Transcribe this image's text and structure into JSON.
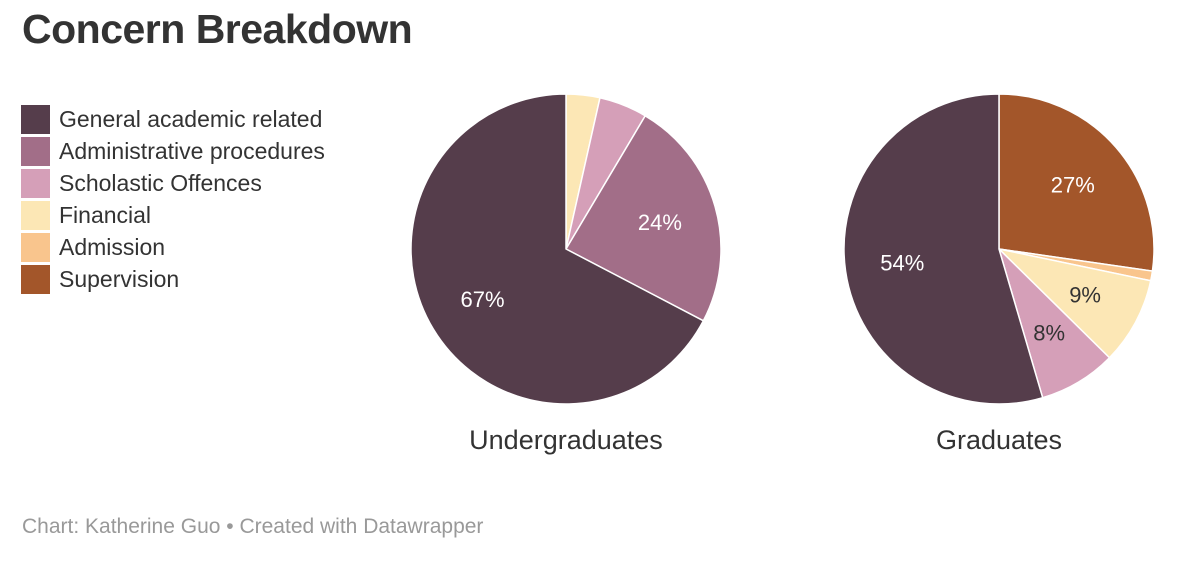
{
  "title": "Concern Breakdown",
  "legend": [
    {
      "label": "General academic related",
      "color": "#553d4b"
    },
    {
      "label": "Administrative procedures",
      "color": "#a26e88"
    },
    {
      "label": "Scholastic Offences",
      "color": "#d59fb8"
    },
    {
      "label": "Financial",
      "color": "#fce7b5"
    },
    {
      "label": "Admission",
      "color": "#f9c58d"
    },
    {
      "label": "Supervision",
      "color": "#a3562a"
    }
  ],
  "chart_data": [
    {
      "type": "pie",
      "title": "Undergraduates",
      "categories": [
        "General academic related",
        "Administrative procedures",
        "Scholastic Offences",
        "Financial",
        "Admission",
        "Supervision"
      ],
      "values": [
        67,
        24,
        5,
        3.5,
        0,
        0
      ],
      "labels": [
        "67%",
        "24%",
        "",
        "",
        "",
        ""
      ],
      "colors": [
        "#553d4b",
        "#a26e88",
        "#d59fb8",
        "#fce7b5",
        "#f9c58d",
        "#a3562a"
      ],
      "label_colors": [
        "#ffffff",
        "#ffffff",
        "#333333",
        "#333333",
        "#333333",
        "#ffffff"
      ],
      "legend": "left"
    },
    {
      "type": "pie",
      "title": "Graduates",
      "categories": [
        "General academic related",
        "Administrative procedures",
        "Scholastic Offences",
        "Financial",
        "Admission",
        "Supervision"
      ],
      "values": [
        54,
        0,
        8,
        9,
        1,
        27
      ],
      "labels": [
        "54%",
        "",
        "8%",
        "9%",
        "",
        "27%"
      ],
      "colors": [
        "#553d4b",
        "#a26e88",
        "#d59fb8",
        "#fce7b5",
        "#f9c58d",
        "#a3562a"
      ],
      "label_colors": [
        "#ffffff",
        "#ffffff",
        "#333333",
        "#333333",
        "#333333",
        "#ffffff"
      ],
      "legend": "left"
    }
  ],
  "credit": "Chart: Katherine Guo • Created with Datawrapper"
}
